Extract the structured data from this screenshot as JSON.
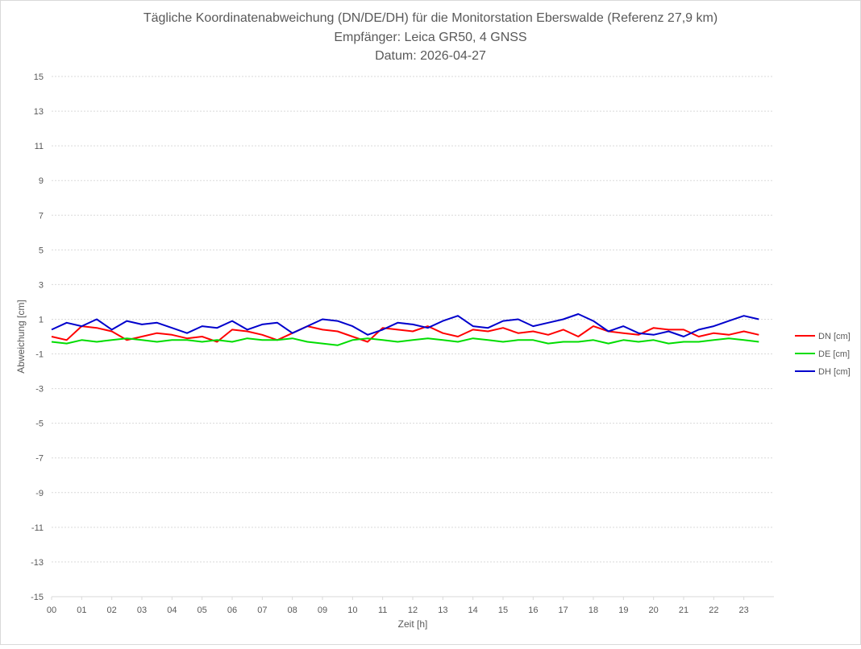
{
  "chart_data": {
    "type": "line",
    "title_lines": [
      "Tägliche Koordinatenabweichung (DN/DE/DH) für die Monitorstation Eberswalde (Referenz 27,9 km)",
      "Empfänger: Leica GR50, 4 GNSS",
      "Datum: 2026-04-27"
    ],
    "xlabel": "Zeit [h]",
    "ylabel": "Abweichung [cm]",
    "xlim": [
      0,
      24
    ],
    "ylim": [
      -15,
      15
    ],
    "x_ticks": [
      "00",
      "01",
      "02",
      "03",
      "04",
      "05",
      "06",
      "07",
      "08",
      "09",
      "10",
      "11",
      "12",
      "13",
      "14",
      "15",
      "16",
      "17",
      "18",
      "19",
      "20",
      "21",
      "22",
      "23"
    ],
    "y_ticks": [
      15,
      13,
      11,
      9,
      7,
      5,
      3,
      1,
      -1,
      -3,
      -5,
      -7,
      -9,
      -11,
      -13,
      -15
    ],
    "grid": "horizontal-dotted",
    "legend_position": "right",
    "x_step_hours": 0.5,
    "series": [
      {
        "name": "DN [cm]",
        "color": "#ff0000",
        "values": [
          0.0,
          -0.2,
          0.6,
          0.5,
          0.3,
          -0.2,
          0.0,
          0.2,
          0.1,
          -0.1,
          0.0,
          -0.3,
          0.4,
          0.3,
          0.1,
          -0.2,
          0.2,
          0.6,
          0.4,
          0.3,
          0.0,
          -0.3,
          0.5,
          0.4,
          0.3,
          0.6,
          0.2,
          0.0,
          0.4,
          0.3,
          0.5,
          0.2,
          0.3,
          0.1,
          0.4,
          0.0,
          0.6,
          0.3,
          0.2,
          0.1,
          0.5,
          0.4,
          0.4,
          0.0,
          0.2,
          0.1,
          0.3,
          0.1
        ]
      },
      {
        "name": "DE [cm]",
        "color": "#00dd00",
        "values": [
          -0.3,
          -0.4,
          -0.2,
          -0.3,
          -0.2,
          -0.1,
          -0.2,
          -0.3,
          -0.2,
          -0.2,
          -0.3,
          -0.2,
          -0.3,
          -0.1,
          -0.2,
          -0.2,
          -0.1,
          -0.3,
          -0.4,
          -0.5,
          -0.2,
          -0.1,
          -0.2,
          -0.3,
          -0.2,
          -0.1,
          -0.2,
          -0.3,
          -0.1,
          -0.2,
          -0.3,
          -0.2,
          -0.2,
          -0.4,
          -0.3,
          -0.3,
          -0.2,
          -0.4,
          -0.2,
          -0.3,
          -0.2,
          -0.4,
          -0.3,
          -0.3,
          -0.2,
          -0.1,
          -0.2,
          -0.3
        ]
      },
      {
        "name": "DH [cm]",
        "color": "#0000cc",
        "values": [
          0.4,
          0.8,
          0.6,
          1.0,
          0.4,
          0.9,
          0.7,
          0.8,
          0.5,
          0.2,
          0.6,
          0.5,
          0.9,
          0.4,
          0.7,
          0.8,
          0.2,
          0.6,
          1.0,
          0.9,
          0.6,
          0.1,
          0.4,
          0.8,
          0.7,
          0.5,
          0.9,
          1.2,
          0.6,
          0.5,
          0.9,
          1.0,
          0.6,
          0.8,
          1.0,
          1.3,
          0.9,
          0.3,
          0.6,
          0.2,
          0.1,
          0.3,
          0.0,
          0.4,
          0.6,
          0.9,
          1.2,
          1.0
        ]
      }
    ]
  }
}
